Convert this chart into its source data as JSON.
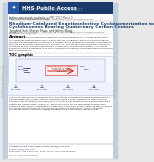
{
  "bg_color": "#e8e8e8",
  "page_bg": "#ffffff",
  "header_bar_color": "#1a3a6b",
  "header_logo_color": "#2a5aaa",
  "header_text": "HHS Public Access",
  "header_text_color": "#ffffff",
  "sidebar_color": "#c0cfe0",
  "sidebar_right_text_color": "#888888",
  "title_color": "#1a3a6b",
  "title_line1": "Rhodium-Catalyzed Enantioselective Cycloisomerization to",
  "title_line2": "Cyclohexenes Bearing Quaternary Carbon Centers",
  "authors": "Jongybok Suh, Sharon Shaw, and Jeffrey Blagg",
  "affil_line1": "Department of Chemistry, University of California, Santa Cruz, California 95064;",
  "affil_line2": "University of California",
  "abstract_header": "Abstract",
  "toc_header": "TOC graphic",
  "scheme_bg": "#f0f4ff",
  "scheme_border": "#aaaacc",
  "cat_box_color": "#fff0f0",
  "cat_border_color": "#cc3333",
  "arrow_color": "#cc2222",
  "text_color": "#222222",
  "gray_text": "#555555",
  "link_color": "#3355aa",
  "divider_color": "#aaaaaa",
  "footer_divider_color": "#888888",
  "watermark_color": "#aaaaaa"
}
